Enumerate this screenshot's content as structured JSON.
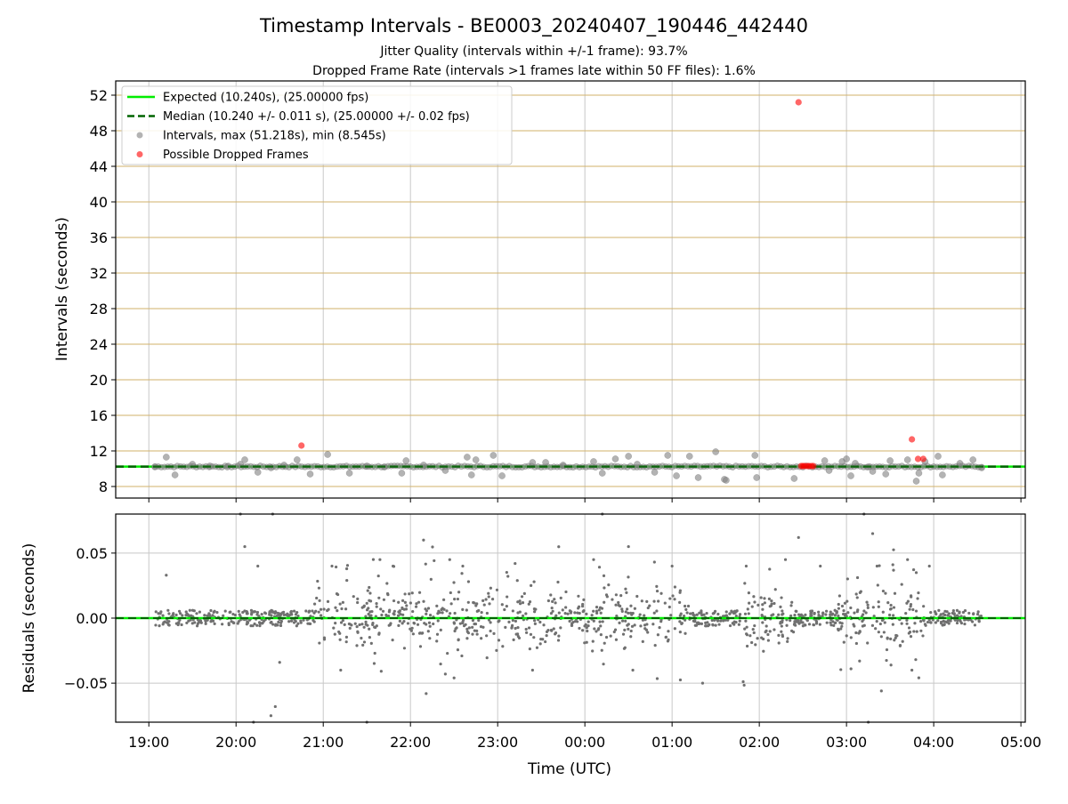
{
  "figure": {
    "title": "Timestamp Intervals - BE0003_20240407_190446_442440",
    "subtitle1": "Jitter Quality (intervals within +/-1 frame): 93.7%",
    "subtitle2": "Dropped Frame Rate (intervals >1 frames late within 50 FF files): 1.6%",
    "xlabel": "Time (UTC)"
  },
  "colors": {
    "expected": "#00ee00",
    "median": "#006400",
    "intervals": "#808080",
    "dropped": "#ff0000",
    "hgrid_top": "#d2b26a",
    "grid": "#c8c8c8"
  },
  "chart_data": [
    {
      "type": "scatter",
      "panel": "top",
      "ylabel": "Intervals (seconds)",
      "ylim": [
        6.7,
        53.6
      ],
      "yticks": [
        8,
        12,
        16,
        20,
        24,
        28,
        32,
        36,
        40,
        44,
        48,
        52
      ],
      "grid": true,
      "legend_position": "top-left",
      "legend": [
        {
          "label": "Expected (10.240s), (25.00000 fps)",
          "kind": "line"
        },
        {
          "label": "Median (10.240 +/- 0.011 s), (25.00000 +/- 0.02 fps)",
          "kind": "dashed"
        },
        {
          "label": "Intervals, max (51.218s), min (8.545s)",
          "kind": "dot-gray"
        },
        {
          "label": "Possible Dropped Frames",
          "kind": "dot-red"
        }
      ],
      "expected": 10.24,
      "median": 10.24,
      "series": [
        {
          "name": "Intervals",
          "note_time_unit": "hours",
          "x": [
            19.07,
            19.2,
            19.3,
            19.5,
            19.7,
            19.9,
            20.05,
            20.1,
            20.25,
            20.4,
            20.55,
            20.7,
            20.85,
            21.05,
            21.3,
            21.5,
            21.7,
            21.9,
            21.95,
            22.15,
            22.4,
            22.65,
            22.7,
            22.75,
            22.95,
            23.05,
            23.4,
            23.55,
            23.75,
            24.1,
            24.2,
            24.35,
            24.5,
            24.6,
            24.8,
            24.95,
            25.05,
            25.2,
            25.3,
            25.5,
            25.6,
            25.62,
            25.95,
            25.97,
            26.4,
            26.75,
            26.8,
            26.95,
            27.0,
            27.05,
            27.1,
            27.25,
            27.3,
            27.45,
            27.5,
            27.7,
            27.8,
            27.83,
            27.9,
            28.05,
            28.1,
            28.3,
            28.45,
            28.55
          ],
          "y": [
            10.2,
            11.3,
            9.3,
            10.5,
            10.3,
            10.2,
            10.5,
            11.0,
            9.6,
            10.1,
            10.4,
            11.0,
            9.4,
            11.6,
            9.5,
            10.3,
            10.2,
            9.5,
            10.9,
            10.4,
            9.8,
            11.3,
            9.3,
            11.0,
            11.5,
            9.2,
            10.7,
            10.7,
            10.4,
            10.8,
            9.5,
            11.1,
            11.4,
            10.5,
            9.6,
            11.5,
            9.2,
            11.4,
            9.0,
            11.9,
            8.8,
            8.7,
            11.5,
            9.0,
            8.9,
            10.9,
            9.8,
            10.8,
            11.1,
            9.2,
            10.6,
            10.2,
            9.7,
            9.4,
            10.9,
            11.0,
            8.6,
            9.5,
            10.8,
            11.4,
            9.3,
            10.6,
            11.0,
            10.1
          ]
        },
        {
          "name": "Possible Dropped Frames",
          "x": [
            20.75,
            26.45,
            26.48,
            26.5,
            26.52,
            26.55,
            26.57,
            26.6,
            26.62,
            27.75,
            27.82,
            27.88
          ],
          "y": [
            12.6,
            51.2,
            10.3,
            10.3,
            10.3,
            10.3,
            10.3,
            10.3,
            10.3,
            13.3,
            11.1,
            11.1
          ]
        }
      ]
    },
    {
      "type": "scatter",
      "panel": "bottom",
      "ylabel": "Residuals (seconds)",
      "ylim": [
        -0.08,
        0.08
      ],
      "yticks": [
        -0.05,
        0.0,
        0.05
      ],
      "ytick_labels": [
        "−0.05",
        "0.00",
        "0.05"
      ],
      "xlim": [
        18.62,
        29.05
      ],
      "xticks": [
        19,
        20,
        21,
        22,
        23,
        24,
        25,
        26,
        27,
        28,
        29
      ],
      "xtick_labels": [
        "19:00",
        "20:00",
        "21:00",
        "22:00",
        "23:00",
        "00:00",
        "01:00",
        "02:00",
        "03:00",
        "04:00",
        "05:00"
      ],
      "grid": true,
      "zero_line": 0.0,
      "series": [
        {
          "name": "Residuals",
          "x_range": [
            19.07,
            28.55
          ],
          "points": 1260,
          "spread_low": 0.006,
          "spread_high": 0.03,
          "outliers_x": [
            19.2,
            20.05,
            20.1,
            20.2,
            20.25,
            20.4,
            20.42,
            20.45,
            20.5,
            21.1,
            21.2,
            21.5,
            21.65,
            21.8,
            22.15,
            22.18,
            22.4,
            22.45,
            22.5,
            22.6,
            23.2,
            23.4,
            24.1,
            24.2,
            24.5,
            24.55,
            25.0,
            25.35,
            25.85,
            26.3,
            26.45,
            26.7,
            27.15,
            27.2,
            27.25,
            27.3,
            27.35,
            27.4,
            27.7,
            27.75,
            27.8,
            27.95
          ],
          "outliers_y": [
            0.033,
            0.08,
            0.055,
            -0.08,
            0.04,
            -0.075,
            0.08,
            -0.068,
            -0.034,
            0.04,
            -0.04,
            -0.08,
            0.045,
            0.04,
            0.06,
            -0.058,
            -0.043,
            0.045,
            -0.046,
            0.04,
            0.042,
            -0.04,
            0.045,
            0.08,
            0.055,
            -0.04,
            0.04,
            -0.05,
            0.04,
            0.045,
            0.062,
            0.04,
            -0.033,
            0.08,
            -0.08,
            0.065,
            0.04,
            -0.056,
            0.045,
            -0.04,
            0.035,
            0.04
          ]
        }
      ]
    }
  ]
}
